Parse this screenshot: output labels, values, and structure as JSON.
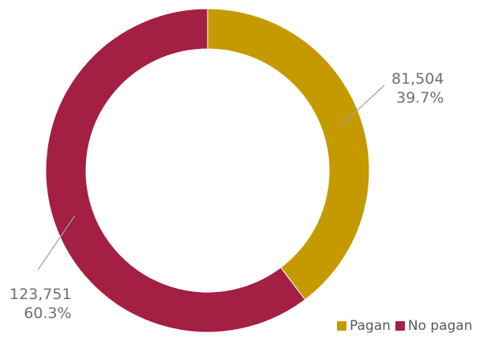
{
  "chart_data": {
    "type": "pie",
    "donut": true,
    "categories": [
      "Pagan",
      "No pagan"
    ],
    "values": [
      81504,
      123751
    ],
    "value_labels": [
      "81,504",
      "123,751"
    ],
    "percent_labels": [
      "39.7%",
      "60.3%"
    ],
    "colors": [
      "#c49a00",
      "#a31f43"
    ],
    "start_angle_deg": 0,
    "legend": "bottom-right",
    "title": ""
  }
}
